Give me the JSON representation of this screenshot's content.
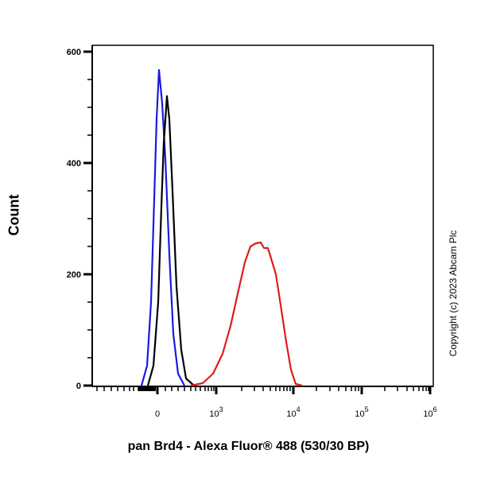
{
  "chart_data": {
    "type": "line",
    "title": "",
    "xlabel": "pan Brd4 - Alexa Fluor® 488 (530/30 BP)",
    "ylabel": "Count",
    "x_scale": "biexponential",
    "x_ticks": [
      "0",
      "10^3",
      "10^4",
      "10^5",
      "10^6"
    ],
    "y_ticks": [
      0,
      200,
      400,
      600
    ],
    "ylim": [
      0,
      620
    ],
    "grid": false,
    "legend": null,
    "series": [
      {
        "name": "blue",
        "color": "#1a1adc",
        "peak_x": "~0",
        "peak_count": 567,
        "points": [
          [
            178,
            485
          ],
          [
            185,
            460
          ],
          [
            190,
            380
          ],
          [
            194,
            250
          ],
          [
            197,
            150
          ],
          [
            200,
            88
          ],
          [
            204,
            130
          ],
          [
            208,
            200
          ],
          [
            213,
            320
          ],
          [
            218,
            420
          ],
          [
            224,
            470
          ],
          [
            232,
            485
          ]
        ]
      },
      {
        "name": "black",
        "color": "#000000",
        "peak_x": "~0",
        "peak_count": 520,
        "points": [
          [
            186,
            485
          ],
          [
            193,
            460
          ],
          [
            199,
            380
          ],
          [
            203,
            260
          ],
          [
            206,
            180
          ],
          [
            210,
            121
          ],
          [
            213,
            150
          ],
          [
            217,
            240
          ],
          [
            222,
            360
          ],
          [
            228,
            440
          ],
          [
            234,
            476
          ],
          [
            244,
            485
          ]
        ]
      },
      {
        "name": "red",
        "color": "#dd1c1c",
        "peak_x": "~3×10^3",
        "peak_count": 257,
        "points": [
          [
            240,
            485
          ],
          [
            255,
            482
          ],
          [
            268,
            470
          ],
          [
            280,
            445
          ],
          [
            290,
            410
          ],
          [
            300,
            365
          ],
          [
            308,
            330
          ],
          [
            315,
            310
          ],
          [
            322,
            306
          ],
          [
            328,
            305
          ],
          [
            332,
            312
          ],
          [
            337,
            312
          ],
          [
            341,
            325
          ],
          [
            347,
            345
          ],
          [
            354,
            390
          ],
          [
            360,
            430
          ],
          [
            366,
            465
          ],
          [
            372,
            483
          ],
          [
            380,
            485
          ]
        ]
      }
    ]
  },
  "labels": {
    "ylabel": "Count",
    "xlabel": "pan Brd4 - Alexa Fluor® 488 (530/30 BP)",
    "copyright": "Copyright (c) 2023 Abcam Plc"
  }
}
